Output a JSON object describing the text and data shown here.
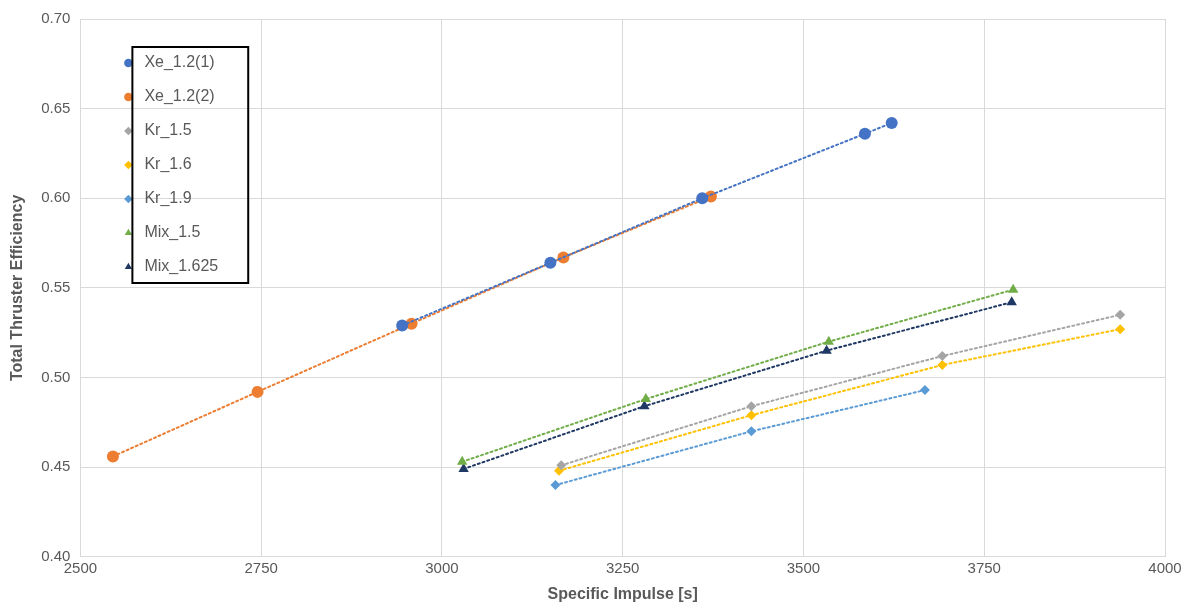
{
  "chart_data": {
    "type": "line",
    "xlabel": "Specific Impulse [s]",
    "ylabel": "Total Thruster Efficiency",
    "xlim": [
      2500,
      4000
    ],
    "xticks": [
      2500,
      2750,
      3000,
      3250,
      3500,
      3750,
      4000
    ],
    "ylim": [
      0.4,
      0.7
    ],
    "yticks": [
      {
        "value": 0.4,
        "label": "0.40"
      },
      {
        "value": 0.45,
        "label": "0.45"
      },
      {
        "value": 0.5,
        "label": "0.50"
      },
      {
        "value": 0.55,
        "label": "0.55"
      },
      {
        "value": 0.6,
        "label": "0.60"
      },
      {
        "value": 0.65,
        "label": "0.65"
      },
      {
        "value": 0.7,
        "label": "0.70"
      }
    ],
    "grid": true,
    "legend": "top left",
    "line_style": "dotted",
    "series": [
      {
        "name": "Xe_1.2(1)",
        "color": "#4472c4",
        "marker": "circle",
        "x": [
          2945,
          3150,
          3360,
          3585,
          3622
        ],
        "values": [
          0.529,
          0.564,
          0.6,
          0.636,
          0.642
        ]
      },
      {
        "name": "Xe_1.2(2)",
        "color": "#ed7d31",
        "marker": "circle",
        "x": [
          2545,
          2745,
          2958,
          3168,
          3372
        ],
        "values": [
          0.456,
          0.492,
          0.53,
          0.567,
          0.601
        ]
      },
      {
        "name": "Kr_1.5",
        "color": "#a5a5a5",
        "marker": "diamond",
        "x": [
          3165,
          3428,
          3692,
          3938
        ],
        "values": [
          0.451,
          0.484,
          0.512,
          0.535
        ]
      },
      {
        "name": "Kr_1.6",
        "color": "#ffc000",
        "marker": "diamond",
        "x": [
          3162,
          3428,
          3692,
          3938
        ],
        "values": [
          0.448,
          0.479,
          0.507,
          0.527
        ]
      },
      {
        "name": "Kr_1.9",
        "color": "#5b9bd5",
        "marker": "diamond",
        "x": [
          3157,
          3428,
          3668
        ],
        "values": [
          0.44,
          0.47,
          0.493
        ]
      },
      {
        "name": "Mix_1.5",
        "color": "#70ad47",
        "marker": "triangle",
        "x": [
          3028,
          3282,
          3535,
          3790
        ],
        "values": [
          0.453,
          0.488,
          0.52,
          0.549
        ]
      },
      {
        "name": "Mix_1.625",
        "color": "#1f3864",
        "marker": "triangle",
        "x": [
          3030,
          3280,
          3532,
          3788
        ],
        "values": [
          0.449,
          0.484,
          0.515,
          0.542
        ]
      }
    ]
  }
}
